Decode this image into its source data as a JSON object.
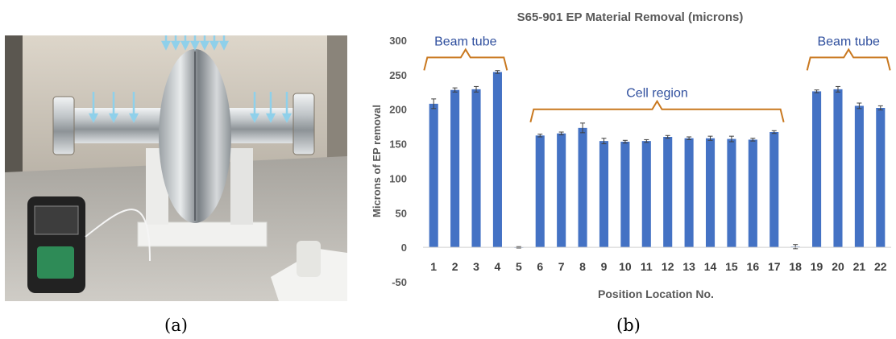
{
  "captions": {
    "a": "(a)",
    "b": "(b)"
  },
  "photo": {
    "description": "",
    "colors": {
      "wall": "#c9c2b6",
      "table": "#b8b5ae",
      "cavity": "#cfd3d6",
      "arrows": "#8fd0ea",
      "stand": "#eeeeec"
    }
  },
  "chart_data": {
    "type": "bar",
    "title": "S65-901 EP Material Removal (microns)",
    "xlabel": "Position Location No.",
    "ylabel": "Microns of EP removal",
    "categories": [
      "1",
      "2",
      "3",
      "4",
      "5",
      "6",
      "7",
      "8",
      "9",
      "10",
      "11",
      "12",
      "13",
      "14",
      "15",
      "16",
      "17",
      "18",
      "19",
      "20",
      "21",
      "22"
    ],
    "values": [
      208,
      228,
      229,
      254,
      0,
      162,
      165,
      173,
      154,
      153,
      154,
      160,
      158,
      158,
      157,
      156,
      167,
      1,
      226,
      229,
      205,
      202
    ],
    "errors": [
      7,
      3,
      4,
      2,
      1,
      2,
      2,
      7,
      4,
      2,
      2,
      2,
      2,
      3,
      4,
      2,
      2,
      3,
      2,
      4,
      4,
      3
    ],
    "ylim": [
      -50,
      300
    ],
    "yticks": [
      -50,
      0,
      50,
      100,
      150,
      200,
      250,
      300
    ],
    "grid": false,
    "bar_color": "#4472c4",
    "annotations": [
      {
        "text": "Beam tube",
        "from": 1,
        "to": 4,
        "level": 275
      },
      {
        "text": "Cell region",
        "from": 6,
        "to": 17,
        "level": 200
      },
      {
        "text": "Beam tube",
        "from": 19,
        "to": 22,
        "level": 275
      }
    ],
    "annotation_color": "#2f4f9e",
    "bracket_color": "#c9781f"
  }
}
